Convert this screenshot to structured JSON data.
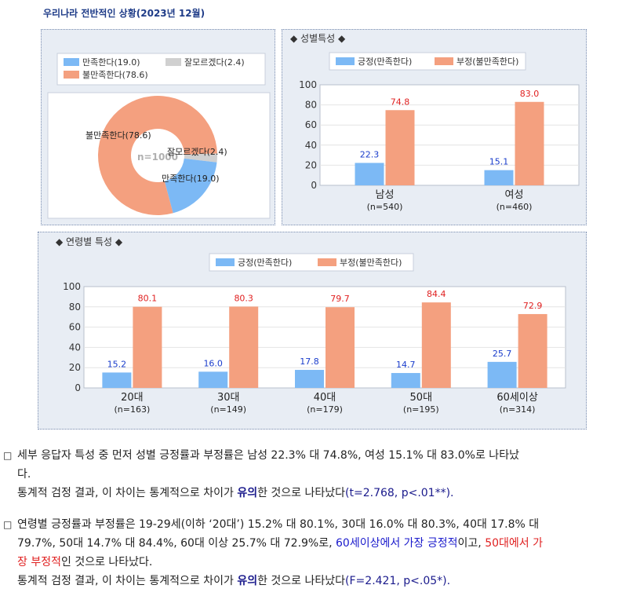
{
  "title": "우리나라 전반적인 상황(2023년 12월)",
  "donut": {
    "legend": [
      {
        "label": "만족한다(19.0)",
        "color": "#7cb9f5"
      },
      {
        "label": "잘모르겠다(2.4)",
        "color": "#d0d0d0"
      },
      {
        "label": "불만족한다(78.6)",
        "color": "#f4a07f"
      }
    ],
    "center_label": "n=1000",
    "slice_labels": {
      "dissatisfied": "불만족한다(78.6)",
      "unsure": "잘모르겠다(2.4)",
      "satisfied": "만족한다(19.0)"
    }
  },
  "gender": {
    "panel_title": "◆ 성별특성 ◆",
    "legend": [
      {
        "label": "긍정(만족한다)",
        "color": "#7cb9f5"
      },
      {
        "label": "부정(불만족한다)",
        "color": "#f4a07f"
      }
    ]
  },
  "age": {
    "panel_title": "◆ 연령별 특성 ◆",
    "legend": [
      {
        "label": "긍정(만족한다)",
        "color": "#7cb9f5"
      },
      {
        "label": "부정(불만족한다)",
        "color": "#f4a07f"
      }
    ]
  },
  "chart_data": [
    {
      "type": "pie",
      "categories": [
        "만족한다",
        "잘모르겠다",
        "불만족한다"
      ],
      "values": [
        19.0,
        2.4,
        78.6
      ],
      "colors": [
        "#7cb9f5",
        "#d0d0d0",
        "#f4a07f"
      ],
      "center_label": "n=1000"
    },
    {
      "type": "bar",
      "categories": [
        "남성",
        "여성"
      ],
      "category_sublabels": [
        "(n=540)",
        "(n=460)"
      ],
      "series": [
        {
          "name": "긍정(만족한다)",
          "values": [
            22.3,
            15.1
          ],
          "color": "#7cb9f5"
        },
        {
          "name": "부정(불만족한다)",
          "values": [
            74.8,
            83.0
          ],
          "color": "#f4a07f"
        }
      ],
      "ylim": [
        0,
        100
      ],
      "yticks": [
        0,
        20,
        40,
        60,
        80,
        100
      ],
      "grid": true,
      "legend": "top"
    },
    {
      "type": "bar",
      "categories": [
        "20대",
        "30대",
        "40대",
        "50대",
        "60세이상"
      ],
      "category_sublabels": [
        "(n=163)",
        "(n=149)",
        "(n=179)",
        "(n=195)",
        "(n=314)"
      ],
      "series": [
        {
          "name": "긍정(만족한다)",
          "values": [
            15.2,
            16.0,
            17.8,
            14.7,
            25.7
          ],
          "color": "#7cb9f5"
        },
        {
          "name": "부정(불만족한다)",
          "values": [
            80.1,
            80.3,
            79.7,
            84.4,
            72.9
          ],
          "color": "#f4a07f"
        }
      ],
      "ylim": [
        0,
        100
      ],
      "yticks": [
        0,
        20,
        40,
        60,
        80,
        100
      ],
      "grid": true,
      "legend": "top"
    }
  ],
  "text": {
    "box": "□",
    "p1_line1": "세부 응답자 특성 중 먼저 성별 긍정률과 부정률은 남성 22.3% 대 74.8%, 여성 15.1% 대 83.0%로 나타났",
    "p1_line2": "다.",
    "p1_line3_a": "통계적 검정 결과, 이 차이는 통계적으로 차이가 ",
    "p1_line3_b": "유의",
    "p1_line3_c": "한 것으로 나타났다",
    "p1_line3_d": "(t=2.768, p<.01**).",
    "p2_line1": "연령별 긍정률과 부정률은 19-29세(이하 ‘20대’) 15.2% 대 80.1%, 30대 16.0% 대 80.3%, 40대 17.8% 대",
    "p2_line2_a": "79.7%, 50대 14.7% 대 84.4%, 60대 이상 25.7% 대 72.9%로, ",
    "p2_line2_b": "60세이상에서 가장 긍정적",
    "p2_line2_c": "이고, ",
    "p2_line2_d": "50대에서 가",
    "p2_line3_a": "장 부정적",
    "p2_line3_b": "인 것으로 나타났다.",
    "p2_line4_a": "통계적 검정 결과, 이 차이는 통계적으로 차이가 ",
    "p2_line4_b": "유의",
    "p2_line4_c": "한 것으로 나타났다",
    "p2_line4_d": "(F=2.421, p<.05*)."
  }
}
